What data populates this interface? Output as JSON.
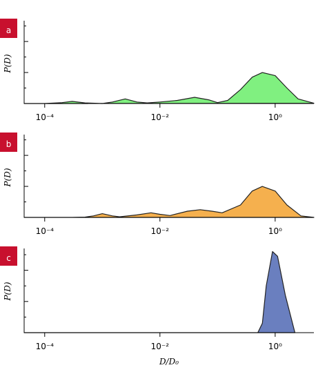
{
  "chart_data": [
    {
      "type": "area",
      "panel": "a",
      "ylabel": "P(D)",
      "xscale": "log",
      "xlim": [
        4.4e-05,
        4.7
      ],
      "ylim": [
        0,
        2.67
      ],
      "xticks": [
        {
          "value": 0.0001,
          "label": "10⁻⁴"
        },
        {
          "value": 0.01,
          "label": "10⁻²"
        },
        {
          "value": 1,
          "label": "10⁰"
        }
      ],
      "yticks": [
        0,
        0.5,
        1,
        1.5,
        2,
        2.5
      ],
      "x": [
        4.4e-05,
        0.0001,
        0.0002,
        0.0003,
        0.0005,
        0.001,
        0.0015,
        0.0025,
        0.004,
        0.006,
        0.01,
        0.02,
        0.04,
        0.07,
        0.1,
        0.15,
        0.25,
        0.4,
        0.6,
        1,
        1.6,
        2.5,
        4.7
      ],
      "color": "#80f080",
      "values": [
        0,
        0,
        0.03,
        0.07,
        0.02,
        0,
        0.05,
        0.15,
        0.05,
        0.02,
        0.05,
        0.1,
        0.2,
        0.12,
        0.03,
        0.1,
        0.45,
        0.85,
        1.0,
        0.9,
        0.5,
        0.15,
        0.01
      ]
    },
    {
      "type": "area",
      "panel": "b",
      "ylabel": "P(D)",
      "xscale": "log",
      "xlim": [
        4.4e-05,
        4.7
      ],
      "ylim": [
        0,
        2.67
      ],
      "xticks": [
        {
          "value": 0.0001,
          "label": "10⁻⁴"
        },
        {
          "value": 0.01,
          "label": "10⁻²"
        },
        {
          "value": 1,
          "label": "10⁰"
        }
      ],
      "yticks": [
        0,
        0.5,
        1,
        1.5,
        2,
        2.5
      ],
      "x": [
        4.4e-05,
        0.0001,
        0.0003,
        0.0005,
        0.0007,
        0.001,
        0.0015,
        0.002,
        0.004,
        0.007,
        0.01,
        0.015,
        0.03,
        0.05,
        0.08,
        0.12,
        0.25,
        0.4,
        0.6,
        1,
        1.6,
        2.8,
        4.7
      ],
      "color": "#f5b04e",
      "values": [
        0,
        0,
        0,
        0.01,
        0.05,
        0.12,
        0.05,
        0.02,
        0.08,
        0.15,
        0.1,
        0.06,
        0.2,
        0.25,
        0.2,
        0.15,
        0.4,
        0.85,
        1.0,
        0.85,
        0.4,
        0.05,
        0
      ]
    },
    {
      "type": "area",
      "panel": "c",
      "ylabel": "P(D)",
      "xlabel": "D/D₀",
      "xscale": "log",
      "xlim": [
        4.4e-05,
        4.7
      ],
      "ylim": [
        0,
        2.7
      ],
      "xticks": [
        {
          "value": 0.0001,
          "label": "10⁻⁴"
        },
        {
          "value": 0.01,
          "label": "10⁻²"
        },
        {
          "value": 1,
          "label": "10⁰"
        }
      ],
      "yticks": [
        0,
        0.5,
        1,
        1.5,
        2,
        2.5
      ],
      "x": [
        4.4e-05,
        0.01,
        0.5,
        0.6,
        0.7,
        0.9,
        1.1,
        1.5,
        2.2
      ],
      "color": "#6a7fbf",
      "values": [
        0,
        0,
        0,
        0.3,
        1.5,
        2.6,
        2.45,
        1.2,
        0
      ]
    }
  ]
}
